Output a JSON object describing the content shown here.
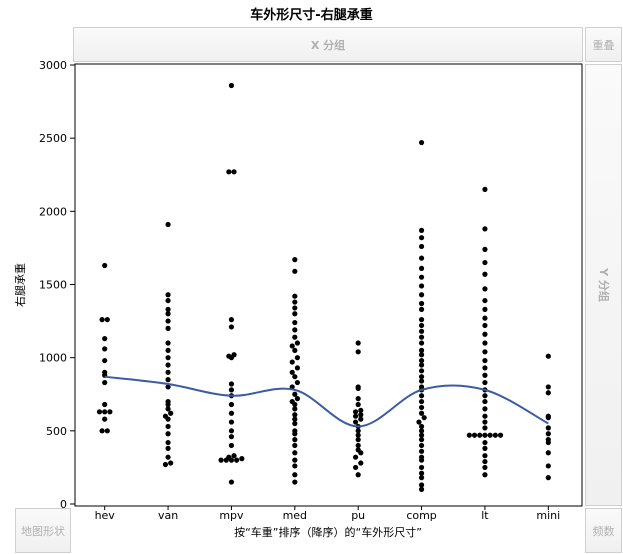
{
  "chart_data": {
    "type": "scatter",
    "title": "车外形尺寸-右腿承重",
    "xlabel": "按“车重”排序（降序）的“车外形尺寸”",
    "ylabel": "右腿承重",
    "categories": [
      "hev",
      "van",
      "mpv",
      "med",
      "pu",
      "comp",
      "lt",
      "mini"
    ],
    "ylim": [
      0,
      3000
    ],
    "yticks": [
      0,
      500,
      1000,
      1500,
      2000,
      2500,
      3000
    ],
    "grid": false,
    "points": {
      "hev": [
        1630,
        1260,
        1260,
        1130,
        1060,
        980,
        900,
        880,
        830,
        680,
        630,
        630,
        630,
        580,
        500,
        500
      ],
      "van": [
        1910,
        1430,
        1390,
        1330,
        1300,
        1250,
        1200,
        1100,
        1050,
        1000,
        950,
        900,
        850,
        800,
        700,
        680,
        650,
        620,
        600,
        580,
        530,
        480,
        420,
        380,
        320,
        280,
        270
      ],
      "mpv": [
        2860,
        2270,
        2270,
        1260,
        1210,
        1020,
        1010,
        1000,
        820,
        780,
        740,
        680,
        620,
        560,
        500,
        460,
        400,
        330,
        320,
        310,
        300,
        300,
        300,
        300,
        150
      ],
      "med": [
        1670,
        1590,
        1420,
        1380,
        1340,
        1300,
        1240,
        1190,
        1140,
        1100,
        1080,
        1050,
        1000,
        970,
        930,
        900,
        870,
        830,
        800,
        750,
        720,
        700,
        680,
        650,
        610,
        580,
        550,
        500,
        480,
        440,
        400,
        350,
        300,
        260,
        200,
        150
      ],
      "pu": [
        1100,
        1040,
        800,
        790,
        720,
        680,
        640,
        630,
        610,
        600,
        580,
        560,
        530,
        500,
        470,
        440,
        400,
        370,
        350,
        320,
        280,
        250,
        200
      ],
      "comp": [
        2470,
        1870,
        1820,
        1760,
        1680,
        1610,
        1550,
        1490,
        1430,
        1370,
        1330,
        1260,
        1220,
        1180,
        1140,
        1100,
        1050,
        1020,
        980,
        950,
        910,
        870,
        840,
        800,
        780,
        740,
        700,
        660,
        620,
        590,
        560,
        530,
        500,
        470,
        440,
        400,
        360,
        320,
        300,
        250,
        210,
        180,
        130,
        100
      ],
      "lt": [
        2150,
        1880,
        1740,
        1650,
        1570,
        1470,
        1390,
        1330,
        1270,
        1220,
        1160,
        1100,
        1040,
        980,
        930,
        880,
        830,
        780,
        740,
        700,
        650,
        600,
        560,
        520,
        470,
        470,
        470,
        470,
        470,
        470,
        470,
        420,
        380,
        330,
        290,
        250,
        200
      ],
      "mini": [
        1010,
        800,
        760,
        600,
        590,
        520,
        480,
        440,
        420,
        350,
        260,
        180
      ]
    },
    "smoother": [
      {
        "x": "hev",
        "y": 870
      },
      {
        "x": "van",
        "y": 820
      },
      {
        "x": "mpv",
        "y": 740
      },
      {
        "x": "med",
        "y": 780
      },
      {
        "x": "pu",
        "y": 530
      },
      {
        "x": "comp",
        "y": 780
      },
      {
        "x": "lt",
        "y": 780
      },
      {
        "x": "mini",
        "y": 550
      }
    ],
    "smoother_color": "#3B5BA5",
    "point_color": "#000000"
  },
  "ui": {
    "x_group": "X 分组",
    "y_group": "Y 分组",
    "overlay": "重叠",
    "map_shape": "地图形状",
    "frequency": "频数"
  }
}
